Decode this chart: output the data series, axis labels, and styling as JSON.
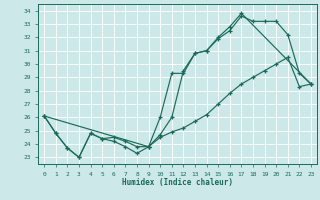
{
  "xlabel": "Humidex (Indice chaleur)",
  "bg_color": "#cce8e8",
  "grid_color": "#b8d8d8",
  "line_color": "#1a6b5a",
  "xlim": [
    -0.5,
    23.5
  ],
  "ylim": [
    22.5,
    34.5
  ],
  "yticks": [
    23,
    24,
    25,
    26,
    27,
    28,
    29,
    30,
    31,
    32,
    33,
    34
  ],
  "xticks": [
    0,
    1,
    2,
    3,
    4,
    5,
    6,
    7,
    8,
    9,
    10,
    11,
    12,
    13,
    14,
    15,
    16,
    17,
    18,
    19,
    20,
    21,
    22,
    23
  ],
  "line_jagged_x": [
    0,
    1,
    2,
    3,
    4,
    5,
    6,
    7,
    8,
    9,
    10,
    11,
    12,
    13,
    14,
    15,
    16,
    17,
    18,
    19,
    20,
    21,
    22,
    23
  ],
  "line_jagged_y": [
    26.1,
    24.8,
    23.7,
    23.0,
    24.8,
    24.4,
    24.2,
    23.8,
    23.3,
    23.8,
    26.0,
    29.3,
    29.3,
    30.8,
    31.0,
    31.9,
    32.5,
    33.6,
    33.2,
    33.2,
    33.2,
    32.2,
    29.3,
    28.5
  ],
  "line_smooth_x": [
    0,
    9,
    10,
    11,
    12,
    13,
    14,
    15,
    16,
    17,
    18,
    19,
    20,
    21,
    22,
    23
  ],
  "line_smooth_y": [
    26.1,
    23.8,
    24.5,
    24.9,
    25.2,
    25.7,
    26.2,
    27.0,
    27.8,
    28.5,
    29.0,
    29.5,
    30.0,
    30.5,
    28.3,
    28.5
  ],
  "line_third_x": [
    0,
    1,
    2,
    3,
    4,
    5,
    6,
    7,
    8,
    9,
    10,
    11,
    12,
    13,
    14,
    15,
    16,
    17,
    23
  ],
  "line_third_y": [
    26.1,
    24.8,
    23.7,
    23.0,
    24.8,
    24.4,
    24.5,
    24.2,
    23.8,
    23.8,
    24.7,
    26.0,
    29.5,
    30.8,
    31.0,
    32.0,
    32.8,
    33.8,
    28.5
  ]
}
